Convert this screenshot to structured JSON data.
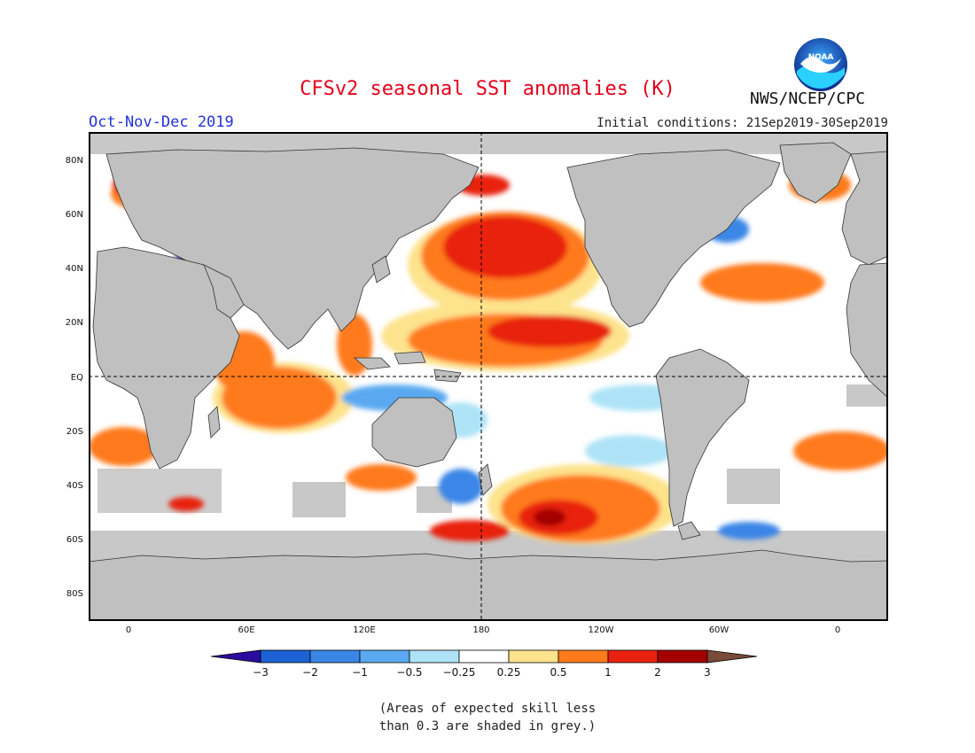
{
  "header": {
    "title": "CFSv2 seasonal SST anomalies (K)",
    "agency": "NWS/NCEP/CPC",
    "season": "Oct-Nov-Dec 2019",
    "initial_conditions": "Initial conditions: 21Sep2019-30Sep2019",
    "logo_text": "NOAA"
  },
  "map": {
    "lat_labels": [
      "80N",
      "60N",
      "40N",
      "20N",
      "EQ",
      "20S",
      "40S",
      "60S",
      "80S"
    ],
    "lon_labels": [
      "0",
      "60E",
      "120E",
      "180",
      "120W",
      "60W",
      "0"
    ],
    "colors": {
      "land": "#c0c0c0",
      "ocean_neutral": "#ffffff",
      "no_skill": "#c8c8c8"
    }
  },
  "legend": {
    "labels": [
      "−3",
      "−2",
      "−1",
      "−0.5",
      "−0.25",
      "0.25",
      "0.5",
      "1",
      "2",
      "3"
    ],
    "colors": [
      "#2a0d9e",
      "#1c62d4",
      "#3a86e6",
      "#5aa9f0",
      "#aee3f7",
      "#ffffff",
      "#fde38c",
      "#ff7a1a",
      "#e8220f",
      "#a40000",
      "#7a4a3a"
    ]
  },
  "footnote": {
    "line1": "(Areas of expected skill less",
    "line2": "than 0.3 are shaded in grey.)"
  }
}
